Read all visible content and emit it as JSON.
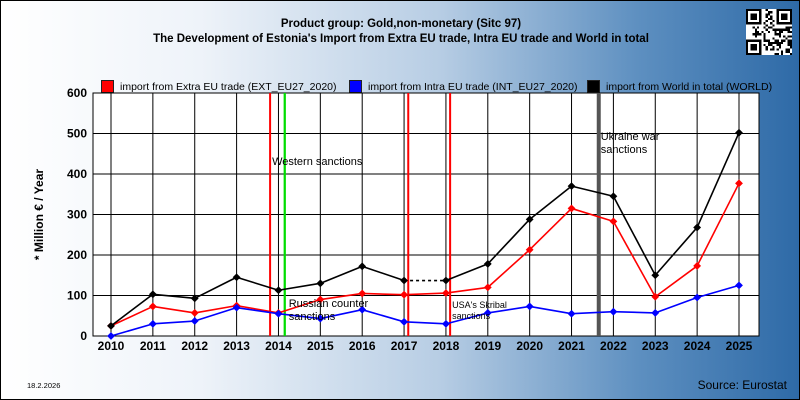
{
  "header": {
    "title_line1": "Product group: Gold,non-monetary (Sitc 97)",
    "title_line2": "The Development of Estonia's Import from Extra EU trade, Intra EU trade and World in total"
  },
  "footer": {
    "date": "18.2.2026",
    "source": "Source: Eurostat"
  },
  "chart_data": {
    "type": "line",
    "ylabel": "* Million € / Year",
    "xlabel": "",
    "ylim": [
      0,
      600
    ],
    "yticks": [
      0,
      100,
      200,
      300,
      400,
      500,
      600
    ],
    "grid": true,
    "legend_position": "top",
    "categories": [
      "2010",
      "2011",
      "2012",
      "2013",
      "2014",
      "2015",
      "2016",
      "2017",
      "2018",
      "2019",
      "2020",
      "2021",
      "2022",
      "2023",
      "2024",
      "2025"
    ],
    "series": [
      {
        "name": "import from Extra EU trade (EXT_EU27_2020)",
        "color": "#ff0000",
        "values": [
          25,
          73,
          57,
          75,
          57,
          90,
          105,
          102,
          106,
          120,
          213,
          315,
          283,
          97,
          173,
          377
        ]
      },
      {
        "name": "import from Intra EU trade (INT_EU27_2020)",
        "color": "#0000ff",
        "values": [
          0,
          30,
          37,
          70,
          55,
          43,
          65,
          35,
          30,
          57,
          73,
          55,
          60,
          57,
          95,
          125
        ]
      },
      {
        "name": "import from World in total (WORLD)",
        "color": "#000000",
        "values": [
          25,
          103,
          93,
          145,
          113,
          130,
          172,
          137,
          137,
          178,
          288,
          370,
          345,
          150,
          268,
          502
        ]
      }
    ],
    "annotations": [
      {
        "label": "Western sanctions",
        "x_position": 2013.8,
        "color": "#ff0000"
      },
      {
        "label": "",
        "x_position": 2014.15,
        "color": "#00dd00"
      },
      {
        "label": "Russian counter sanctions",
        "x_position": 2014.15,
        "color": "#00dd00"
      },
      {
        "label": "",
        "x_position": 2017.1,
        "color": "#ff0000"
      },
      {
        "label": "USA's Skribal sanctions",
        "x_position": 2018.1,
        "color": "#ff0000"
      },
      {
        "label": "Ukraine war sanctions",
        "x_position": 2021.65,
        "color": "#555555"
      }
    ],
    "dashed_segment": {
      "from": "2017",
      "to": "2018",
      "series": "import from World in total (WORLD)"
    }
  }
}
